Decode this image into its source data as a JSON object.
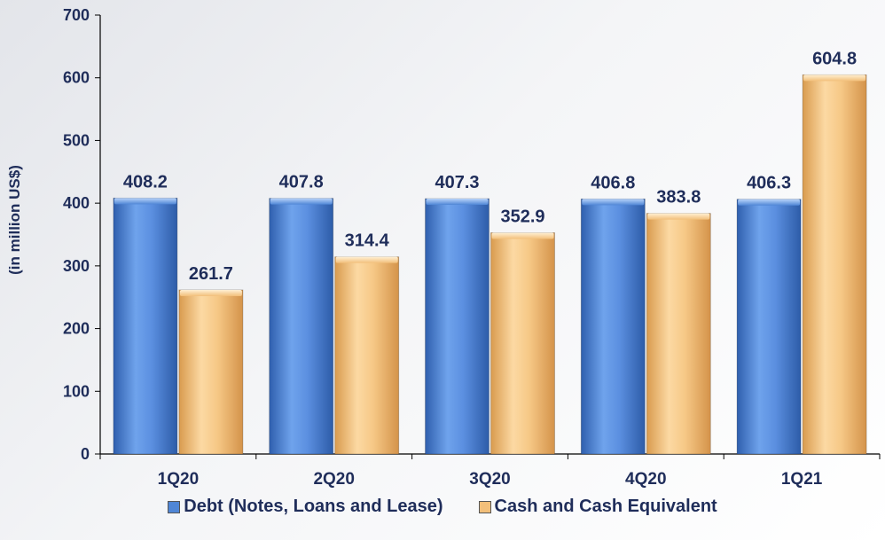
{
  "chart_data": {
    "type": "bar",
    "categories": [
      "1Q20",
      "2Q20",
      "3Q20",
      "4Q20",
      "1Q21"
    ],
    "series": [
      {
        "name": "Debt (Notes, Loans and Lease)",
        "values": [
          408.2,
          407.8,
          407.3,
          406.8,
          406.3
        ],
        "labels": [
          "408.2",
          "407.8",
          "407.3",
          "406.8",
          "406.3"
        ],
        "color": "#4f86d6"
      },
      {
        "name": "Cash and Cash Equivalent",
        "values": [
          261.7,
          314.4,
          352.9,
          383.8,
          604.8
        ],
        "labels": [
          "261.7",
          "314.4",
          "352.9",
          "383.8",
          "604.8"
        ],
        "color": "#f2bf7a"
      }
    ],
    "ylabel": "(in million US$)",
    "ylim": [
      0,
      700
    ],
    "yticks": [
      "0",
      "100",
      "200",
      "300",
      "400",
      "500",
      "600",
      "700"
    ],
    "legend_position": "bottom",
    "grid": false
  }
}
